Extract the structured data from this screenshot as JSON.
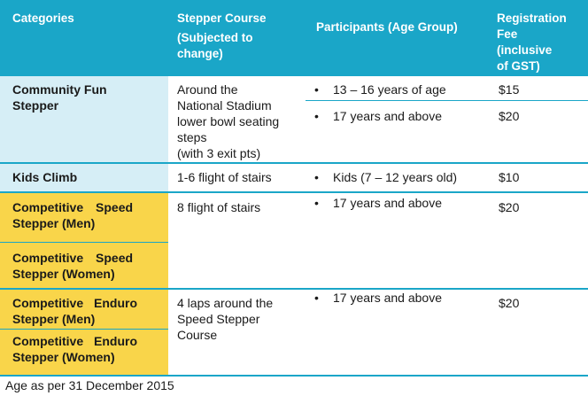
{
  "headers": {
    "categories": "Categories",
    "course_line1": "Stepper Course",
    "course_line2": "(Subjected to",
    "course_line3": "change)",
    "participants": "Participants (Age Group)",
    "fee_line1": "Registration",
    "fee_line2": "Fee",
    "fee_line3": "(inclusive",
    "fee_line4": "of GST)"
  },
  "rows": {
    "community": {
      "category_line1": "Community Fun",
      "category_line2": "Stepper",
      "course_line1": "Around the",
      "course_line2": "National Stadium",
      "course_line3": "lower bowl seating",
      "course_line4": "steps",
      "course_line5": "(with 3 exit pts)",
      "age1": "13 – 16 years of age",
      "fee1": "$15",
      "age2": "17 years and above",
      "fee2": "$20"
    },
    "kids": {
      "category": "Kids Climb",
      "course": "1-6 flight of stairs",
      "age": "Kids (7 – 12 years old)",
      "fee": "$10"
    },
    "speed": {
      "men_line1": "Competitive Speed",
      "men_line2": "Stepper (Men)",
      "women_line1": "Competitive Speed",
      "women_line2": "Stepper (Women)",
      "course": "8 flight of stairs",
      "age": "17 years and above",
      "fee": "$20"
    },
    "enduro": {
      "men_line1": "Competitive Enduro",
      "men_line2": "Stepper (Men)",
      "women_line1": "Competitive Enduro",
      "women_line2": "Stepper (Women)",
      "course_line1": "4 laps around the",
      "course_line2": "Speed Stepper",
      "course_line3": "Course",
      "age": "17 years and above",
      "fee": "$20"
    }
  },
  "bullet_char": "•",
  "footnote": "Age as per 31 December 2015",
  "colors": {
    "header": "#1aa6c8",
    "category_light": "#d6eef6",
    "category_competitive": "#f9d54a"
  }
}
